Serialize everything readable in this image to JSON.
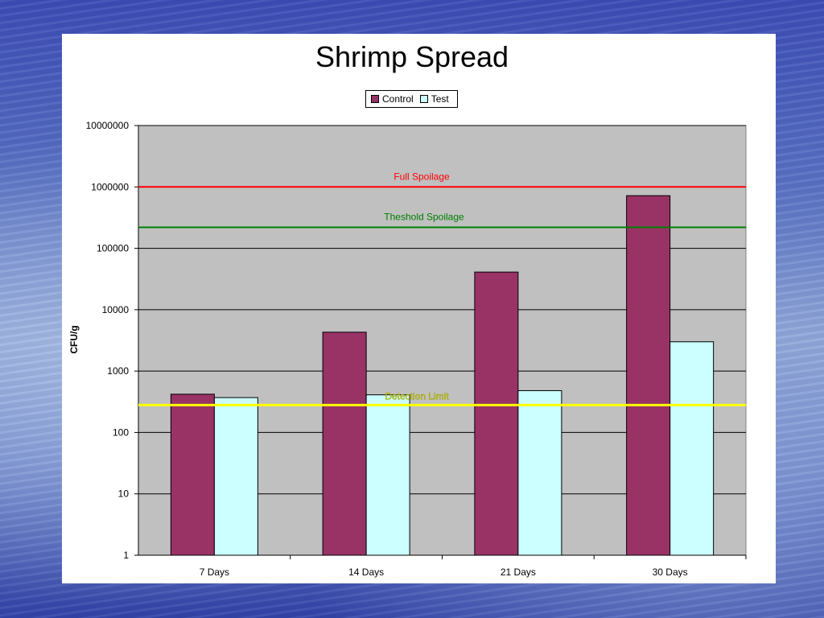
{
  "chart_data": {
    "type": "bar",
    "title": "Shrimp Spread",
    "ylabel": "CFU/g",
    "xlabel": "",
    "y_scale": "log",
    "ylim": [
      1,
      10000000
    ],
    "y_ticks": [
      "10000000",
      "1000000",
      "100000",
      "10000",
      "1000",
      "100",
      "10",
      "1"
    ],
    "y_tick_values": [
      10000000,
      1000000,
      100000,
      10000,
      1000,
      100,
      10,
      1
    ],
    "categories": [
      "7 Days",
      "14 Days",
      "21 Days",
      "30 Days"
    ],
    "series": [
      {
        "name": "Control",
        "color": "#993366",
        "values": [
          420,
          4300,
          41000,
          720000
        ]
      },
      {
        "name": "Test",
        "color": "#ccffff",
        "values": [
          370,
          410,
          480,
          3000
        ]
      }
    ],
    "reference_lines": [
      {
        "label": "Full Spoilage",
        "value": 1000000,
        "color": "#ff0000",
        "label_color": "#ff0000"
      },
      {
        "label": "Theshold Spoilage",
        "value": 220000,
        "color": "#008000",
        "label_color": "#008000"
      },
      {
        "label": "Detection Limit",
        "value": 280,
        "color": "#ffff00",
        "label_color": "#cccc00"
      }
    ],
    "grid": true,
    "legend_position": "top-center",
    "plot_background": "#c0c0c0"
  }
}
